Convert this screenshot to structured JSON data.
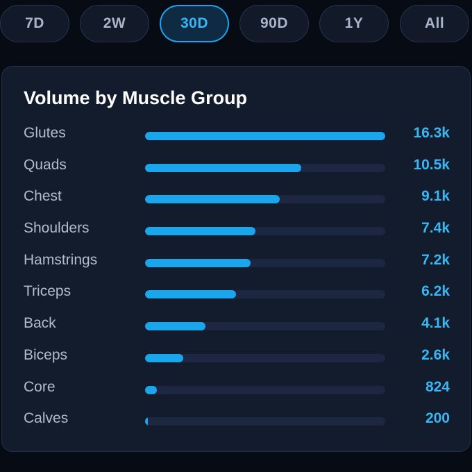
{
  "range_tabs": [
    {
      "label": "7D",
      "active": false
    },
    {
      "label": "2W",
      "active": false
    },
    {
      "label": "30D",
      "active": true
    },
    {
      "label": "90D",
      "active": false
    },
    {
      "label": "1Y",
      "active": false
    },
    {
      "label": "All",
      "active": false
    }
  ],
  "card": {
    "title": "Volume by Muscle Group",
    "rows": [
      {
        "label": "Glutes",
        "value": "16.3k",
        "fraction": 1.0
      },
      {
        "label": "Quads",
        "value": "10.5k",
        "fraction": 0.65
      },
      {
        "label": "Chest",
        "value": "9.1k",
        "fraction": 0.56
      },
      {
        "label": "Shoulders",
        "value": "7.4k",
        "fraction": 0.46
      },
      {
        "label": "Hamstrings",
        "value": "7.2k",
        "fraction": 0.44
      },
      {
        "label": "Triceps",
        "value": "6.2k",
        "fraction": 0.38
      },
      {
        "label": "Back",
        "value": "4.1k",
        "fraction": 0.25
      },
      {
        "label": "Biceps",
        "value": "2.6k",
        "fraction": 0.16
      },
      {
        "label": "Core",
        "value": "824",
        "fraction": 0.05
      },
      {
        "label": "Calves",
        "value": "200",
        "fraction": 0.012
      }
    ]
  },
  "colors": {
    "accent": "#19a6ec",
    "track": "#1d2741",
    "card_bg": "#121c2d",
    "page_bg": "#070b14"
  }
}
